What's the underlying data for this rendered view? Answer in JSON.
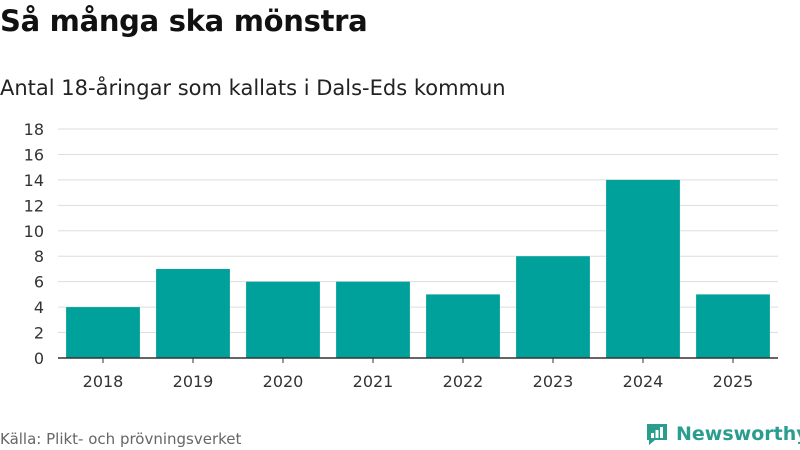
{
  "title": "Så många ska mönstra",
  "subtitle": "Antal 18-åringar som kallats i Dals-Eds kommun",
  "source": "Källa: Plikt- och prövningsverket",
  "brand": {
    "name": "Newsworthy",
    "icon": "newsworthy-logo-icon"
  },
  "colors": {
    "bar": "#00a19a",
    "grid": "#dddddd",
    "axis": "#333333",
    "brand": "#2a9d8f"
  },
  "chart_data": {
    "type": "bar",
    "categories": [
      "2018",
      "2019",
      "2020",
      "2021",
      "2022",
      "2023",
      "2024",
      "2025"
    ],
    "values": [
      4,
      7,
      6,
      6,
      5,
      8,
      14,
      5
    ],
    "yticks": [
      0,
      2,
      4,
      6,
      8,
      10,
      12,
      14,
      16,
      18
    ],
    "ylim": [
      0,
      18
    ],
    "grid": true,
    "legend": "none"
  }
}
